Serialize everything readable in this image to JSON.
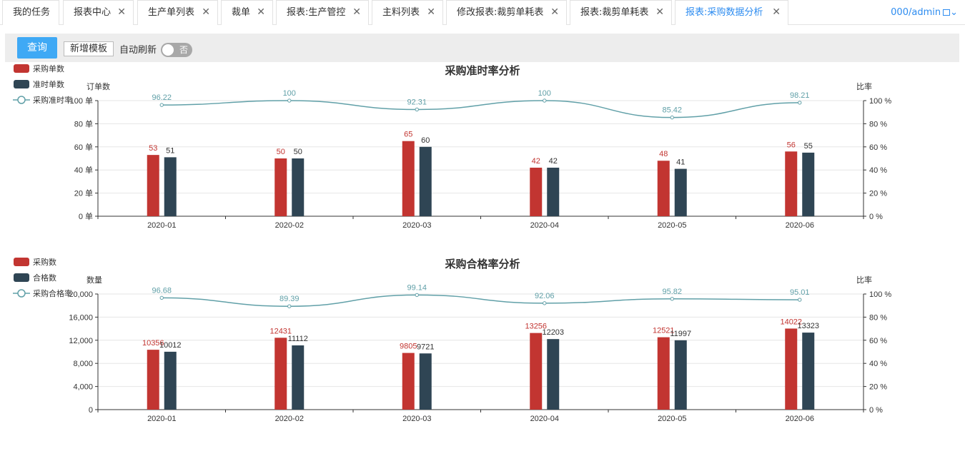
{
  "tabs": [
    {
      "label": "我的任务",
      "closable": false
    },
    {
      "label": "报表中心",
      "closable": true
    },
    {
      "label": "生产单列表",
      "closable": true
    },
    {
      "label": "裁单",
      "closable": true
    },
    {
      "label": "报表:生产管控",
      "closable": true
    },
    {
      "label": "主料列表",
      "closable": true
    },
    {
      "label": "修改报表:裁剪单耗表",
      "closable": true
    },
    {
      "label": "报表:裁剪单耗表",
      "closable": true
    },
    {
      "label": "报表:采购数据分析",
      "closable": true,
      "active": true
    }
  ],
  "close_glyph": "✕",
  "user": {
    "label": "000/admin",
    "caret": "⌄"
  },
  "toolbar": {
    "query_label": "查询",
    "new_template_label": "新增模板",
    "auto_refresh_label": "自动刷新",
    "switch_state": "否"
  },
  "colors": {
    "bar1": "#c23531",
    "bar2": "#2f4554",
    "line": "#61a0a8",
    "accent": "#2d8cf0",
    "query_bg": "#3fa9f5"
  },
  "chart_data": [
    {
      "type": "bar",
      "title": "采购准时率分析",
      "ylabel": "订单数",
      "y2label": "比率",
      "categories": [
        "2020-01",
        "2020-02",
        "2020-03",
        "2020-04",
        "2020-05",
        "2020-06"
      ],
      "ylim": [
        0,
        100
      ],
      "yticks": [
        "0 单",
        "20 单",
        "40 单",
        "60 单",
        "80 单",
        "100 单"
      ],
      "y2lim": [
        0,
        100
      ],
      "y2ticks": [
        "0 %",
        "20 %",
        "40 %",
        "60 %",
        "80 %",
        "100 %"
      ],
      "legend_position": "top-left",
      "grid": true,
      "series": [
        {
          "name": "采购单数",
          "kind": "bar",
          "values": [
            53,
            50,
            65,
            42,
            48,
            56
          ],
          "labels": [
            "53",
            "50",
            "65",
            "42",
            "48",
            "56"
          ]
        },
        {
          "name": "准时单数",
          "kind": "bar",
          "values": [
            51,
            50,
            60,
            42,
            41,
            55
          ],
          "labels": [
            "51",
            "50",
            "60",
            "42",
            "41",
            "55"
          ]
        },
        {
          "name": "采购准时率",
          "kind": "line",
          "axis": "right",
          "values": [
            96.22,
            100,
            92.31,
            100,
            85.42,
            98.21
          ],
          "labels": [
            "96.22",
            "100",
            "92.31",
            "100",
            "85.42",
            "98.21"
          ]
        }
      ]
    },
    {
      "type": "bar",
      "title": "采购合格率分析",
      "ylabel": "数量",
      "y2label": "比率",
      "categories": [
        "2020-01",
        "2020-02",
        "2020-03",
        "2020-04",
        "2020-05",
        "2020-06"
      ],
      "ylim": [
        0,
        20000
      ],
      "yticks": [
        "0",
        "4,000",
        "8,000",
        "12,000",
        "16,000",
        "20,000"
      ],
      "y2lim": [
        0,
        100
      ],
      "y2ticks": [
        "0 %",
        "20 %",
        "40 %",
        "60 %",
        "80 %",
        "100 %"
      ],
      "legend_position": "top-left",
      "grid": true,
      "series": [
        {
          "name": "采购数",
          "kind": "bar",
          "values": [
            10356,
            12431,
            9805,
            13256,
            12521,
            14022
          ],
          "labels": [
            "10356",
            "12431",
            "9805",
            "13256",
            "12521",
            "14022"
          ]
        },
        {
          "name": "合格数",
          "kind": "bar",
          "values": [
            10012,
            11112,
            9721,
            12203,
            11997,
            13323
          ],
          "labels": [
            "10012",
            "11112",
            "9721",
            "12203",
            "11997",
            "13323"
          ]
        },
        {
          "name": "采购合格率",
          "kind": "line",
          "axis": "right",
          "values": [
            96.68,
            89.39,
            99.14,
            92.06,
            95.82,
            95.01
          ],
          "labels": [
            "96.68",
            "89.39",
            "99.14",
            "92.06",
            "95.82",
            "95.01"
          ]
        }
      ]
    }
  ]
}
